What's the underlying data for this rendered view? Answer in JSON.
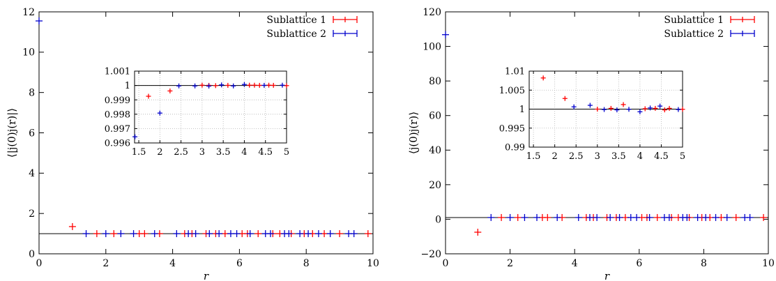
{
  "colors": {
    "sublattice_1": "#ff0000",
    "sublattice_2": "#0000cc",
    "reference_line": "#000000",
    "grid": "#b0b0b0"
  },
  "chart_data": [
    {
      "type": "scatter",
      "panel": "left",
      "xlabel": "r",
      "ylabel": "⟨|j(0)j(r)|⟩",
      "xlim": [
        0,
        10
      ],
      "ylim": [
        0,
        12
      ],
      "xticks": [
        "0",
        "2",
        "4",
        "6",
        "8",
        "10"
      ],
      "yticks": [
        "0",
        "2",
        "4",
        "6",
        "8",
        "10",
        "12"
      ],
      "grid": false,
      "reference_line": 1,
      "legend_position": "top-right",
      "series": [
        {
          "name": "Sublattice 1",
          "x": [
            1.0,
            1.73,
            2.24,
            3.0,
            3.16,
            3.61,
            4.36,
            4.58,
            5.0,
            5.29,
            5.57,
            6.08,
            6.24,
            6.56,
            7.0,
            7.21,
            7.55,
            7.94,
            8.19,
            8.54,
            9.0,
            9.85
          ],
          "y": [
            1.35,
            1.0,
            1.0,
            1.0,
            1.0,
            1.0,
            1.0,
            1.0,
            1.0,
            1.0,
            1.0,
            1.0,
            1.0,
            1.0,
            1.0,
            1.0,
            1.0,
            1.0,
            1.0,
            1.0,
            1.0,
            1.0
          ]
        },
        {
          "name": "Sublattice 2",
          "x": [
            0.0,
            1.41,
            2.0,
            2.45,
            2.83,
            3.46,
            4.12,
            4.47,
            4.69,
            5.1,
            5.39,
            5.74,
            5.92,
            6.32,
            6.78,
            6.93,
            7.35,
            7.48,
            7.81,
            8.06,
            8.37,
            8.72,
            9.27,
            9.43
          ],
          "y": [
            11.55,
            1.0,
            1.0,
            1.0,
            1.0,
            1.0,
            1.0,
            1.0,
            1.0,
            1.0,
            1.0,
            1.0,
            1.0,
            1.0,
            1.0,
            1.0,
            1.0,
            1.0,
            1.0,
            1.0,
            1.0,
            1.0,
            1.0,
            1.0
          ]
        }
      ],
      "inset": {
        "xlim": [
          1.4,
          5.0
        ],
        "ylim": [
          0.996,
          1.001
        ],
        "xticks": [
          "1.5",
          "2",
          "2.5",
          "3",
          "3.5",
          "4",
          "4.5",
          "5"
        ],
        "yticks": [
          "0.996",
          "0.997",
          "0.998",
          "0.999",
          "1",
          "1.001"
        ],
        "grid": true,
        "reference_line": 1,
        "series": [
          {
            "name": "Sublattice 1",
            "x": [
              1.73,
              2.24,
              3.0,
              3.16,
              3.32,
              3.61,
              4.12,
              4.24,
              4.36,
              4.58,
              4.69,
              5.0
            ],
            "y": [
              0.99925,
              0.99962,
              1.00002,
              1.00001,
              0.99999,
              1.00001,
              1.00002,
              1.00002,
              1.00001,
              1.00002,
              1.00001,
              0.99999
            ]
          },
          {
            "name": "Sublattice 2",
            "x": [
              1.41,
              2.0,
              2.45,
              2.83,
              3.16,
              3.46,
              3.74,
              4.0,
              4.47,
              4.9
            ],
            "y": [
              0.99643,
              0.99808,
              0.99997,
              0.99997,
              0.99996,
              1.00004,
              0.99997,
              1.00007,
              1.00001,
              1.00002
            ]
          }
        ]
      }
    },
    {
      "type": "scatter",
      "panel": "right",
      "xlabel": "r",
      "ylabel": "⟨j(0)j(r)⟩",
      "xlim": [
        0,
        10
      ],
      "ylim": [
        -20,
        120
      ],
      "xticks": [
        "0",
        "2",
        "4",
        "6",
        "8",
        "10"
      ],
      "yticks": [
        "−20",
        "0",
        "20",
        "40",
        "60",
        "80",
        "100",
        "120"
      ],
      "grid": false,
      "reference_line": 1,
      "legend_position": "top-right",
      "series": [
        {
          "name": "Sublattice 1",
          "x": [
            1.0,
            1.73,
            2.24,
            3.0,
            3.16,
            3.61,
            4.36,
            4.58,
            5.0,
            5.29,
            5.57,
            6.08,
            6.24,
            6.56,
            7.0,
            7.21,
            7.55,
            7.94,
            8.19,
            8.54,
            9.0,
            9.85
          ],
          "y": [
            -7.5,
            1.0,
            1.0,
            1.0,
            1.0,
            1.0,
            1.0,
            1.0,
            1.0,
            1.0,
            1.0,
            1.0,
            1.0,
            1.0,
            1.0,
            1.0,
            1.0,
            1.0,
            1.0,
            1.0,
            1.0,
            1.0
          ]
        },
        {
          "name": "Sublattice 2",
          "x": [
            0.0,
            1.41,
            2.0,
            2.45,
            2.83,
            3.46,
            4.12,
            4.47,
            4.69,
            5.1,
            5.39,
            5.74,
            5.92,
            6.32,
            6.78,
            6.93,
            7.35,
            7.48,
            7.81,
            8.06,
            8.37,
            8.72,
            9.27,
            9.43
          ],
          "y": [
            106.8,
            1.0,
            1.0,
            1.0,
            1.0,
            1.0,
            1.0,
            1.0,
            1.0,
            1.0,
            1.0,
            1.0,
            1.0,
            1.0,
            1.0,
            1.0,
            1.0,
            1.0,
            1.0,
            1.0,
            1.0,
            1.0,
            1.0,
            1.0
          ]
        }
      ],
      "inset": {
        "xlim": [
          1.4,
          5.0
        ],
        "ylim": [
          0.99,
          1.01
        ],
        "xticks": [
          "1.5",
          "2",
          "2.5",
          "3",
          "3.5",
          "4",
          "4.5",
          "5"
        ],
        "yticks": [
          "0.99",
          "0.995",
          "1",
          "1.005",
          "1.01"
        ],
        "grid": true,
        "reference_line": 1,
        "series": [
          {
            "name": "Sublattice 1",
            "x": [
              1.73,
              2.24,
              3.0,
              3.32,
              3.61,
              4.12,
              4.36,
              4.58,
              4.69,
              5.0
            ],
            "y": [
              1.0082,
              1.0028,
              1.0,
              1.0002,
              1.0012,
              1.0001,
              1.0002,
              0.9998,
              1.0002,
              0.99995
            ]
          },
          {
            "name": "Sublattice 2",
            "x": [
              2.45,
              2.83,
              3.16,
              3.46,
              3.74,
              4.0,
              4.24,
              4.47,
              4.9
            ],
            "y": [
              1.0006,
              1.001,
              0.9999,
              0.9998,
              0.99995,
              0.9993,
              1.0003,
              1.0008,
              0.9999
            ]
          }
        ]
      }
    }
  ]
}
